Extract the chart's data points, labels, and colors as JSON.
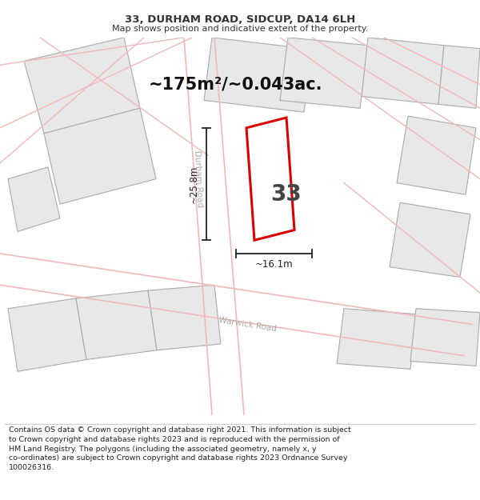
{
  "title_line1": "33, DURHAM ROAD, SIDCUP, DA14 6LH",
  "title_line2": "Map shows position and indicative extent of the property.",
  "area_text": "~175m²/~0.043ac.",
  "property_number": "33",
  "dim_width": "~16.1m",
  "dim_height": "~25.8m",
  "road1_label": "Durham Road",
  "road2_label": "Warwick Road",
  "footer_wrapped": "Contains OS data © Crown copyright and database right 2021. This information is subject\nto Crown copyright and database rights 2023 and is reproduced with the permission of\nHM Land Registry. The polygons (including the associated geometry, namely x, y\nco-ordinates) are subject to Crown copyright and database rights 2023 Ordnance Survey\n100026316.",
  "bg_color": "#ffffff",
  "map_bg": "#ffffff",
  "road_line_color": "#f0b8b8",
  "block_fill": "#e8e8e8",
  "block_edge": "#aaaaaa",
  "property_fill": "#ffffff",
  "property_edge": "#dd0000",
  "road_label_color": "#aaaaaa",
  "dim_line_color": "#222222",
  "title_color": "#333333",
  "footer_color": "#222222",
  "area_text_color": "#111111"
}
